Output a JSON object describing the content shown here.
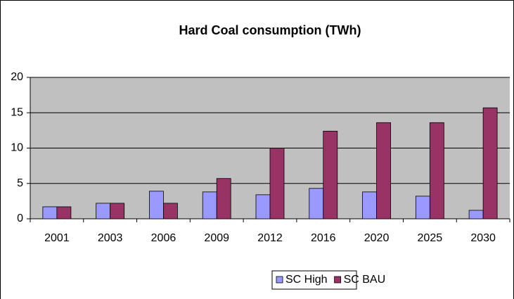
{
  "chart_data": {
    "type": "bar",
    "title": "Hard Coal consumption (TWh)",
    "categories": [
      "2001",
      "2003",
      "2006",
      "2009",
      "2012",
      "2016",
      "2020",
      "2025",
      "2030"
    ],
    "series": [
      {
        "name": "SC High",
        "color": "#9999ff",
        "values": [
          1.7,
          2.2,
          3.9,
          3.8,
          3.4,
          4.3,
          3.8,
          3.2,
          1.2
        ]
      },
      {
        "name": "SC BAU",
        "color": "#993366",
        "values": [
          1.7,
          2.2,
          2.2,
          5.7,
          10,
          12.4,
          13.6,
          13.6,
          15.7
        ]
      }
    ],
    "ylim": [
      0,
      20
    ],
    "yticks": [
      0,
      5,
      10,
      15,
      20
    ],
    "grid": true,
    "legend": "bottom"
  }
}
